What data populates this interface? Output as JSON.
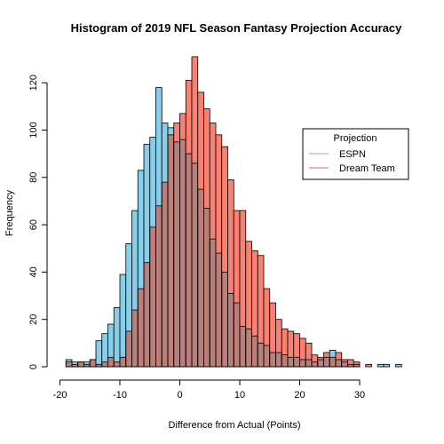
{
  "chart_data": {
    "type": "bar",
    "title": "Histogram of 2019 NFL Season Fantasy Projection Accuracy",
    "xlabel": "Difference from Actual (Points)",
    "ylabel": "Frequency",
    "xlim": [
      -20,
      37
    ],
    "ylim": [
      0,
      133
    ],
    "x_ticks": [
      -20,
      -10,
      0,
      10,
      20,
      30
    ],
    "y_ticks": [
      0,
      20,
      40,
      60,
      80,
      100,
      120
    ],
    "bin_width": 1,
    "grid": false,
    "legend": {
      "title": "Projection",
      "position": "top-right"
    },
    "colors": {
      "ESPN": "#87ceeb",
      "Dream Team": "#fa8072",
      "overlap": "#b97f78"
    },
    "series": [
      {
        "name": "ESPN",
        "bin_starts": [
          -19,
          -18,
          -17,
          -16,
          -15,
          -14,
          -13,
          -12,
          -11,
          -10,
          -9,
          -8,
          -7,
          -6,
          -5,
          -4,
          -3,
          -2,
          -1,
          0,
          1,
          2,
          3,
          4,
          5,
          6,
          7,
          8,
          9,
          10,
          11,
          12,
          13,
          14,
          15,
          16,
          17,
          18,
          19,
          20,
          21,
          22,
          23,
          24,
          25,
          26,
          27,
          28,
          29,
          30,
          31,
          32,
          33,
          34,
          35,
          36
        ],
        "values": [
          3,
          2,
          2,
          2,
          3,
          11,
          14,
          18,
          25,
          39,
          52,
          66,
          83,
          94,
          97,
          118,
          103,
          101,
          95,
          96,
          90,
          86,
          75,
          67,
          54,
          48,
          40,
          31,
          27,
          17,
          16,
          13,
          10,
          9,
          6,
          6,
          5,
          4,
          4,
          3,
          3,
          2,
          3,
          4,
          7,
          3,
          2,
          1,
          1,
          0,
          0,
          0,
          1,
          1,
          0,
          1
        ]
      },
      {
        "name": "Dream Team",
        "bin_starts": [
          -19,
          -18,
          -17,
          -16,
          -15,
          -14,
          -13,
          -12,
          -11,
          -10,
          -9,
          -8,
          -7,
          -6,
          -5,
          -4,
          -3,
          -2,
          -1,
          0,
          1,
          2,
          3,
          4,
          5,
          6,
          7,
          8,
          9,
          10,
          11,
          12,
          13,
          14,
          15,
          16,
          17,
          18,
          19,
          20,
          21,
          22,
          23,
          24,
          25,
          26,
          27,
          28,
          29,
          30,
          31,
          32,
          33,
          34,
          35,
          36
        ],
        "values": [
          2,
          1,
          2,
          1,
          3,
          1,
          2,
          4,
          2,
          4,
          15,
          24,
          33,
          44,
          59,
          68,
          78,
          98,
          103,
          107,
          121,
          131,
          116,
          109,
          103,
          98,
          93,
          79,
          66,
          66,
          53,
          49,
          47,
          33,
          27,
          20,
          16,
          15,
          14,
          12,
          10,
          5,
          4,
          6,
          4,
          6,
          3,
          3,
          2,
          0,
          1,
          0,
          0,
          0,
          0,
          0
        ]
      }
    ]
  }
}
